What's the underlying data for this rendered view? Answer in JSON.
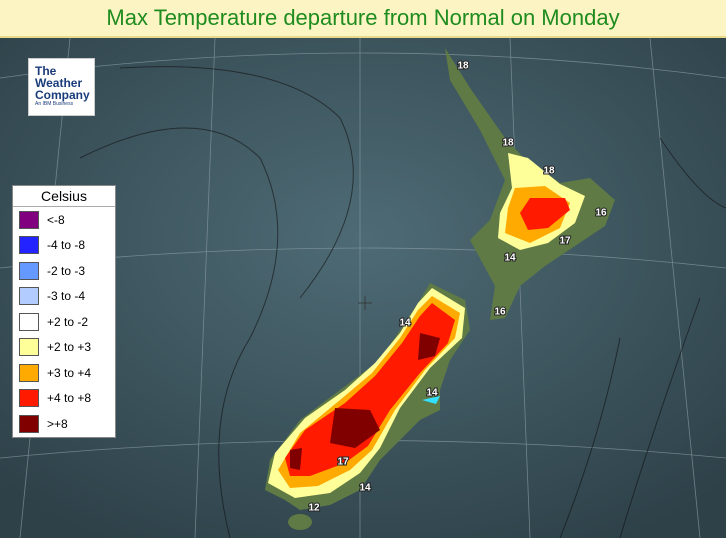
{
  "header": {
    "title": "Max Temperature departure from Normal on Monday"
  },
  "logo": {
    "line1": "The",
    "line2": "Weather",
    "line3": "Company",
    "tagline": "An IBM Business"
  },
  "legend": {
    "title": "Celsius",
    "items": [
      {
        "label": "<-8",
        "color": "#800080"
      },
      {
        "label": "-4 to -8",
        "color": "#2323ff"
      },
      {
        "label": "-2 to -3",
        "color": "#6699ff"
      },
      {
        "label": "-3 to -4",
        "color": "#b3ccff"
      },
      {
        "label": "+2 to -2",
        "color": "#ffffff"
      },
      {
        "label": "+2 to +3",
        "color": "#ffff99"
      },
      {
        "label": "+3 to +4",
        "color": "#ffaa00"
      },
      {
        "label": "+4 to +8",
        "color": "#ff1a00"
      },
      {
        "label": ">+8",
        "color": "#800000"
      }
    ]
  },
  "map_labels": [
    "18",
    "18",
    "18",
    "16",
    "17",
    "14",
    "16",
    "14",
    "14",
    "17",
    "14",
    "12"
  ]
}
